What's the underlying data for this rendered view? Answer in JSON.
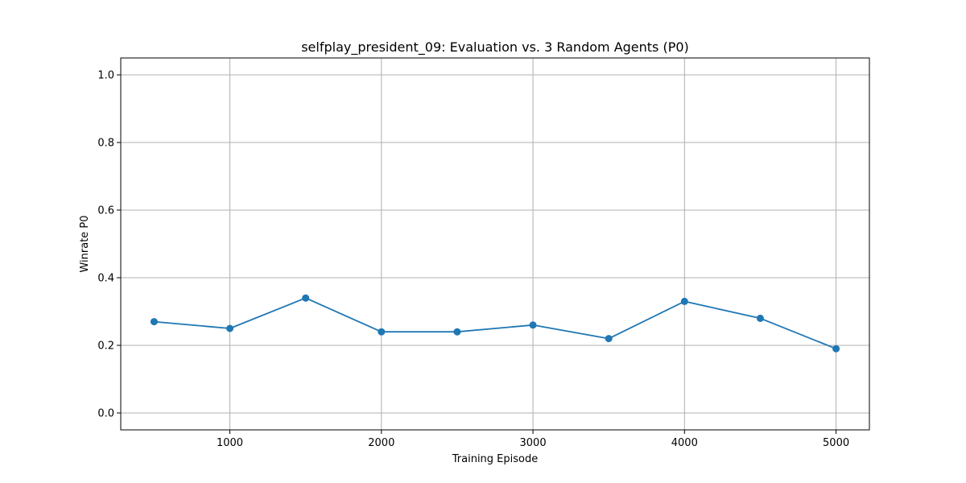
{
  "chart_data": {
    "type": "line",
    "title": "selfplay_president_09: Evaluation vs. 3 Random Agents (P0)",
    "xlabel": "Training Episode",
    "ylabel": "Winrate P0",
    "xlim": [
      280,
      5220
    ],
    "ylim": [
      -0.05,
      1.05
    ],
    "xticks": [
      1000,
      2000,
      3000,
      4000,
      5000
    ],
    "yticks": [
      0.0,
      0.2,
      0.4,
      0.6,
      0.8,
      1.0
    ],
    "xtick_labels": [
      "1000",
      "2000",
      "3000",
      "4000",
      "5000"
    ],
    "ytick_labels": [
      "0.0",
      "0.2",
      "0.4",
      "0.6",
      "0.8",
      "1.0"
    ],
    "grid": true,
    "series": [
      {
        "color": "#1f77b4",
        "marker": "circle",
        "x": [
          500,
          1000,
          1500,
          2000,
          2500,
          3000,
          3500,
          4000,
          4500,
          5000
        ],
        "y": [
          0.27,
          0.25,
          0.34,
          0.24,
          0.24,
          0.26,
          0.22,
          0.33,
          0.28,
          0.19
        ]
      }
    ]
  }
}
